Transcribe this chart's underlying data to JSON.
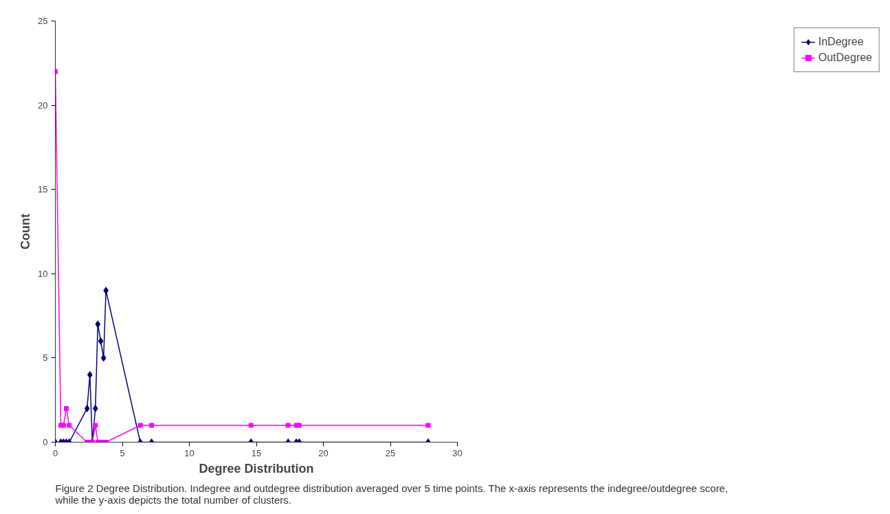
{
  "chart_data": {
    "type": "line",
    "xlabel": "Degree Distribution",
    "ylabel": "Count",
    "annotations": [
      "Figure 2 Degree Distribution. Indegree and outdegree distribution averaged over 5 time points. The x-axis represents the indegree/outdegree score, while the y-axis depicts the total number of clusters."
    ],
    "x": [
      0,
      0.41,
      0.61,
      0.82,
      1.04,
      2.37,
      2.58,
      2.76,
      2.99,
      3.17,
      3.39,
      3.6,
      3.78,
      6.34,
      7.18,
      14.6,
      17.37,
      17.98,
      18.2,
      27.82
    ],
    "series": [
      {
        "name": "InDegree",
        "color": "#000080",
        "marker": "diamond",
        "values": [
          0,
          0,
          0,
          0,
          0,
          2,
          4,
          0,
          2,
          7,
          6,
          5,
          9,
          0,
          0,
          0,
          0,
          0,
          0,
          0
        ]
      },
      {
        "name": "OutDegree",
        "color": "#ff00ff",
        "marker": "square",
        "values": [
          22,
          1,
          1,
          2,
          1,
          0,
          0,
          0,
          1,
          0,
          0,
          0,
          0,
          1,
          1,
          1,
          1,
          1,
          1,
          1
        ]
      }
    ],
    "xlim": [
      0,
      30
    ],
    "xticks": [
      0,
      5,
      10,
      15,
      20,
      25,
      30
    ],
    "ylim": [
      0,
      25
    ],
    "yticks": [
      0,
      5,
      10,
      15,
      20,
      25
    ],
    "grid": false,
    "legend": "right",
    "line_style": "solid"
  }
}
